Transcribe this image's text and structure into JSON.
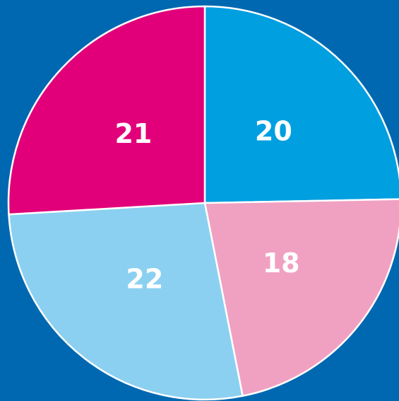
{
  "chart_data": {
    "type": "pie",
    "categories": [
      null,
      null,
      null,
      null
    ],
    "values": [
      20,
      18,
      22,
      21
    ],
    "colors": [
      "#009fe0",
      "#f0a1c2",
      "#8bd0f0",
      "#e2007a"
    ],
    "start_angle": 0,
    "direction": "clockwise"
  }
}
